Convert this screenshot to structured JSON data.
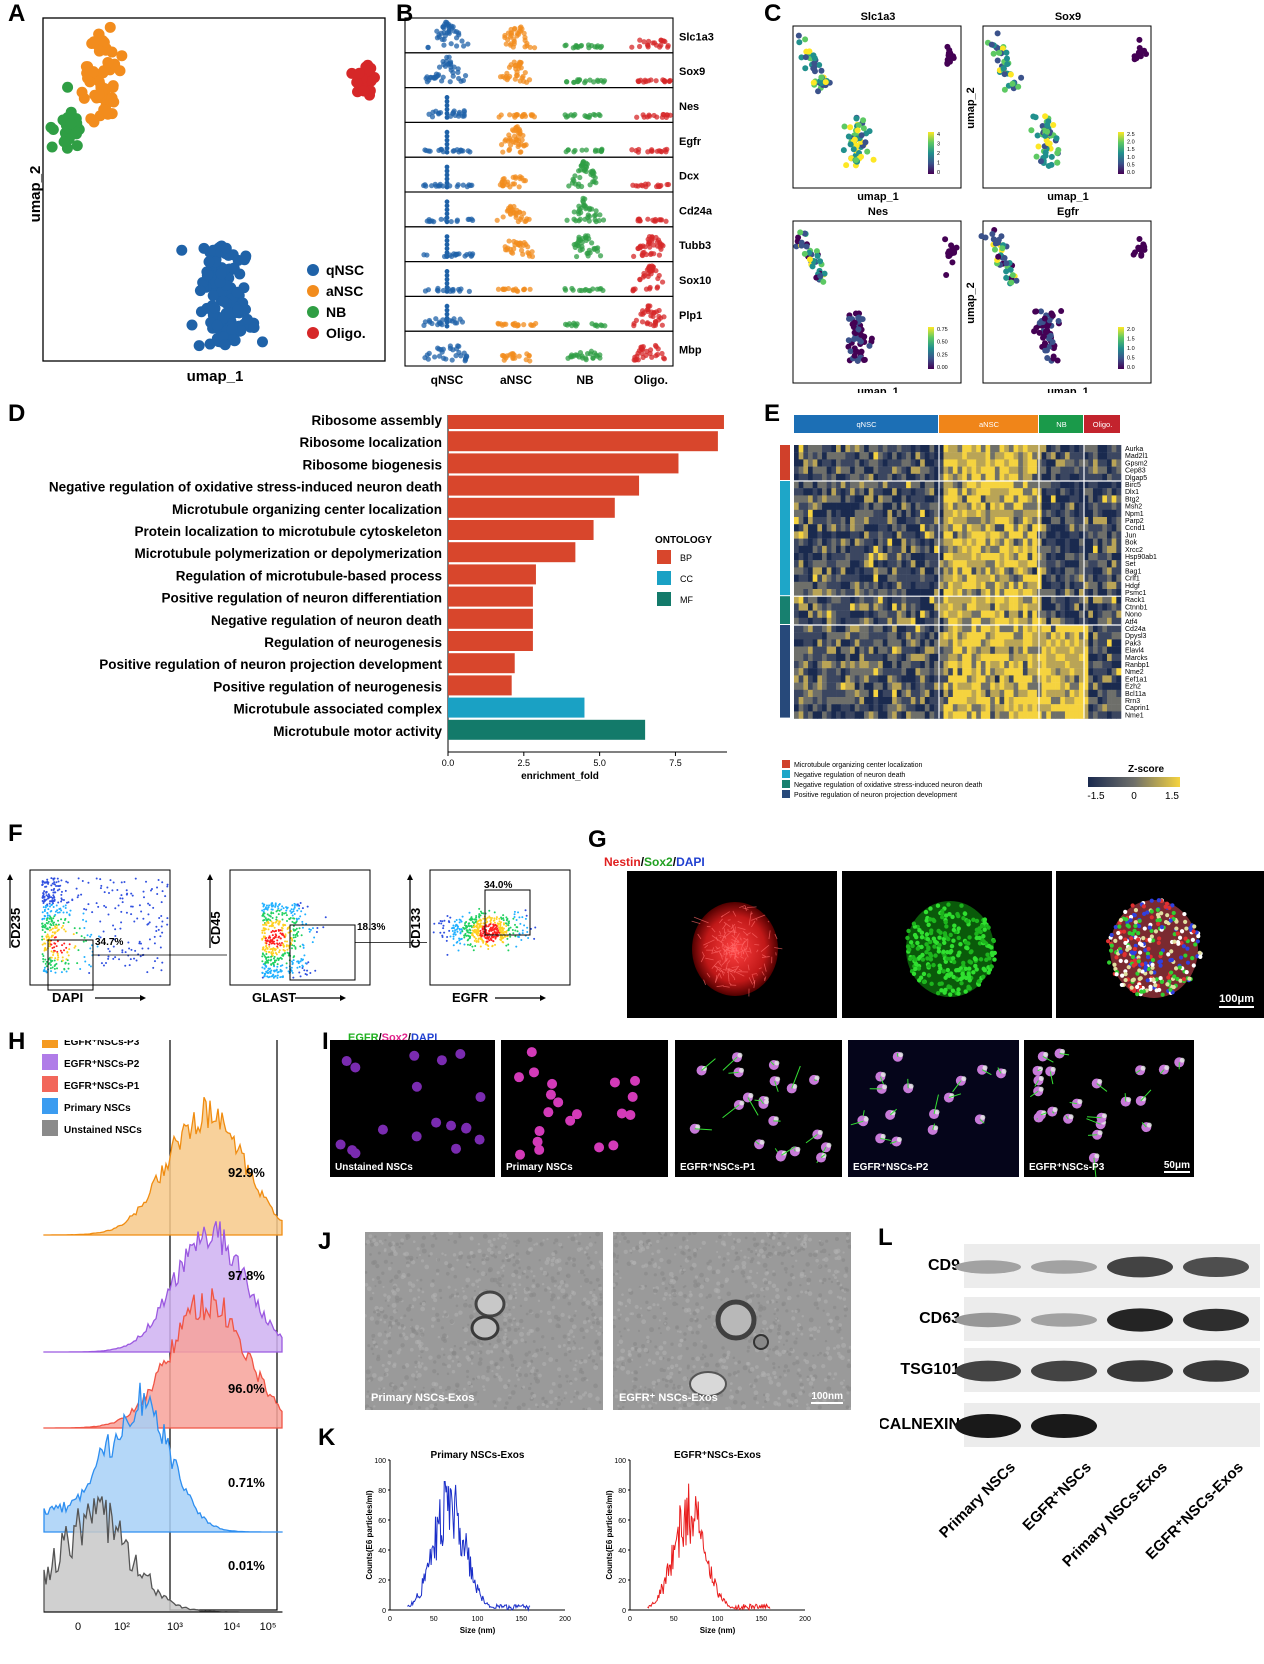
{
  "panels": {
    "A": {
      "letter": "A",
      "xlabel": "umap_1",
      "ylabel": "umap_2",
      "legend": [
        "qNSC",
        "aNSC",
        "NB",
        "Oligo."
      ],
      "colors": [
        "#1f62a8",
        "#f28c1d",
        "#2f9e44",
        "#d62728"
      ]
    },
    "B": {
      "letter": "B",
      "genes": [
        "Slc1a3",
        "Sox9",
        "Nes",
        "Egfr",
        "Dcx",
        "Cd24a",
        "Tubb3",
        "Sox10",
        "Plp1",
        "Mbp"
      ],
      "groups": [
        "qNSC",
        "aNSC",
        "NB",
        "Oligo."
      ]
    },
    "C": {
      "letter": "C",
      "plots": [
        {
          "title": "Slc1a3",
          "scale": [
            "4",
            "3",
            "2",
            "1",
            "0"
          ]
        },
        {
          "title": "Sox9",
          "scale": [
            "2.5",
            "2.0",
            "1.5",
            "1.0",
            "0.5",
            "0.0"
          ]
        },
        {
          "title": "Nes",
          "scale": [
            "0.75",
            "0.50",
            "0.25",
            "0.00"
          ]
        },
        {
          "title": "Egfr",
          "scale": [
            "2.0",
            "1.5",
            "1.0",
            "0.5",
            "0.0"
          ]
        }
      ],
      "xlabel": "umap_1",
      "ylabel": "umap_2"
    },
    "D": {
      "letter": "D",
      "xlabel": "enrichment_fold",
      "xticks": [
        "0.0",
        "2.5",
        "5.0",
        "7.5"
      ],
      "legend_title": "ONTOLOGY",
      "legend": [
        {
          "label": "BP",
          "color": "#d8462c"
        },
        {
          "label": "CC",
          "color": "#1aa1c4"
        },
        {
          "label": "MF",
          "color": "#137a6a"
        }
      ]
    },
    "E": {
      "letter": "E",
      "groups": [
        "qNSC",
        "aNSC",
        "NB",
        "Oligo."
      ],
      "genes": [
        "Aurka",
        "Mad2l1",
        "Gpsm2",
        "Cep83",
        "Dlgap5",
        "Birc5",
        "Dlx1",
        "Btg2",
        "Msh2",
        "Npm1",
        "Parp2",
        "Ccnd1",
        "Jun",
        "Bok",
        "Xrcc2",
        "Hsp90ab1",
        "Set",
        "Bag1",
        "Crlf1",
        "Hdgf",
        "Psmc1",
        "Rack1",
        "Ctnnb1",
        "Nono",
        "Atf4",
        "Cd24a",
        "Dpysl3",
        "Pak3",
        "Elavl4",
        "Marcks",
        "Ranbp1",
        "Nme2",
        "Eef1a1",
        "Ezh2",
        "Bcl11a",
        "Rrn3",
        "Caprin1",
        "Nme1"
      ],
      "legend": [
        "Microtubule organizing center localization",
        "Negative regulation of neuron death",
        "Negative regulation of oxidative stress-induced neuron death",
        "Positive regulation of neuron projection development"
      ],
      "zscore_title": "Z-score",
      "zscore_ticks": [
        "-1.5",
        "0",
        "1.5"
      ]
    },
    "F": {
      "letter": "F",
      "plots": [
        {
          "ylabel": "CD235",
          "xlabel": "DAPI",
          "gate": "34.7%"
        },
        {
          "ylabel": "CD45",
          "xlabel": "GLAST",
          "gate": "18.3%"
        },
        {
          "ylabel": "CD133",
          "xlabel": "EGFR",
          "gate": "34.0%"
        }
      ]
    },
    "G": {
      "letter": "G",
      "title_parts": [
        "Nestin",
        "/",
        "Sox2",
        "/",
        "DAPI"
      ],
      "scalebar": "100μm"
    },
    "H": {
      "letter": "H",
      "legend": [
        "EGFR⁺NSCs-P3",
        "EGFR⁺NSCs-P2",
        "EGFR⁺NSCs-P1",
        "Primary NSCs",
        "Unstained NSCs"
      ],
      "percents": [
        "92.9%",
        "97.8%",
        "96.0%",
        "0.71%",
        "0.01%"
      ],
      "xticks": [
        "0",
        "10²",
        "10³",
        "10⁴",
        "10⁵"
      ]
    },
    "I": {
      "letter": "I",
      "title_parts": [
        "EGFR",
        "/",
        "Sox2",
        "/",
        "DAPI"
      ],
      "labels": [
        "Unstained NSCs",
        "Primary NSCs",
        "EGFR⁺NSCs-P1",
        "EGFR⁺NSCs-P2",
        "EGFR⁺NSCs-P3"
      ],
      "scalebar": "50μm"
    },
    "J": {
      "letter": "J",
      "labels": [
        "Primary NSCs-Exos",
        "EGFR⁺ NSCs-Exos"
      ],
      "scalebar": "100nm"
    },
    "K": {
      "letter": "K",
      "plots": [
        {
          "title": "Primary NSCs-Exos",
          "ylabel": "Counts(E6 particles/ml)",
          "xlabel": "Size (nm)",
          "xticks": [
            "0",
            "50",
            "100",
            "150",
            "200"
          ],
          "yticks": [
            "0",
            "20",
            "40",
            "60",
            "80",
            "100"
          ]
        },
        {
          "title": "EGFR⁺NSCs-Exos",
          "ylabel": "Counts(E6 particles/ml)",
          "xlabel": "Size (nm)",
          "xticks": [
            "0",
            "50",
            "100",
            "150",
            "200"
          ],
          "yticks": [
            "0",
            "20",
            "40",
            "60",
            "80",
            "100"
          ]
        }
      ]
    },
    "L": {
      "letter": "L",
      "proteins": [
        "CD9",
        "CD63",
        "TSG101",
        "CALNEXIN"
      ],
      "lanes": [
        "Primary NSCs",
        "EGFR⁺NSCs",
        "Primary NSCs-Exos",
        "EGFR⁺NSCs-Exos"
      ]
    }
  },
  "chart_data": [
    {
      "type": "bar",
      "title": "",
      "xlabel": "enrichment_fold",
      "ylabel": "",
      "xlim": [
        0,
        9.2
      ],
      "categories": [
        "Ribosome assembly",
        "Ribosome localization",
        "Ribosome biogenesis",
        "Negative regulation of oxidative stress-induced neuron death",
        "Microtubule organizing center localization",
        "Protein localization to microtubule cytoskeleton",
        "Microtubule polymerization or depolymerization",
        "Regulation of microtubule-based process",
        "Positive regulation of neuron differentiation",
        "Negative regulation of neuron death",
        "Regulation of neurogenesis",
        "Positive regulation of neuron projection development",
        "Positive regulation of neurogenesis",
        "Microtubule associated complex",
        "Microtubule motor activity"
      ],
      "values": [
        9.1,
        8.9,
        7.6,
        6.3,
        5.5,
        4.8,
        4.2,
        2.9,
        2.8,
        2.8,
        2.8,
        2.2,
        2.1,
        4.5,
        6.5
      ],
      "ontology": [
        "BP",
        "BP",
        "BP",
        "BP",
        "BP",
        "BP",
        "BP",
        "BP",
        "BP",
        "BP",
        "BP",
        "BP",
        "BP",
        "CC",
        "MF"
      ]
    }
  ]
}
